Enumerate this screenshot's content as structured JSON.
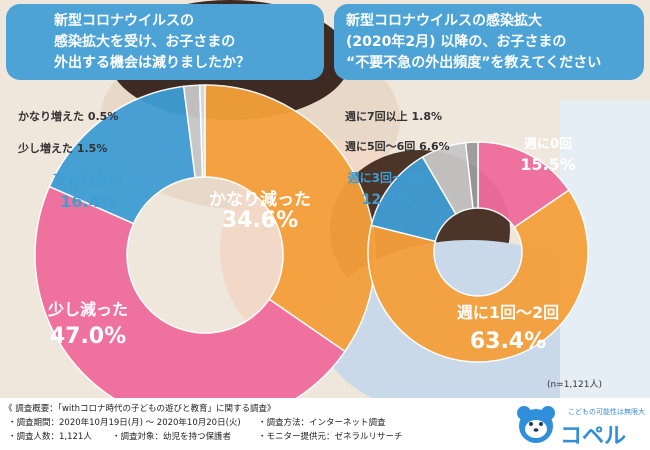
{
  "header": {
    "q1_lines": [
      "新型コロナウイルスの",
      "感染拡大を受け、お子さまの",
      "外出する機会は減りましたか？"
    ],
    "q2_lines": [
      "新型コロナウイルスの感染拡大",
      "(2020年2月) 以降の、お子さまの",
      "“不要不急の外出頻度”を教えてください"
    ]
  },
  "chart_data": [
    {
      "type": "pie",
      "title": "新型コロナウイルスの感染拡大を受け、お子さまの外出する機会は減りましたか？",
      "slices": [
        {
          "label": "かなり減った",
          "value": 34.6,
          "value_text": "34.6%",
          "color": "#f5a03a"
        },
        {
          "label": "少し減った",
          "value": 47.0,
          "value_text": "47.0%",
          "color": "#f06c9b"
        },
        {
          "label": "変わらない",
          "value": 16.4,
          "value_text": "16.4%",
          "color": "#3f9dd4"
        },
        {
          "label": "少し増えた",
          "value": 1.5,
          "value_text": "1.5%",
          "color": "#c7c7c7"
        },
        {
          "label": "かなり増えた",
          "value": 0.5,
          "value_text": "0.5%",
          "color": "#e0e0e0"
        }
      ]
    },
    {
      "type": "pie",
      "title": "新型コロナウイルスの感染拡大(2020年2月)以降の、お子さまの“不要不急の外出頻度”を教えてください",
      "slices": [
        {
          "label": "週に0回",
          "value": 15.5,
          "value_text": "15.5%",
          "color": "#f06c9b"
        },
        {
          "label": "週に1回〜2回",
          "value": 63.4,
          "value_text": "63.4%",
          "color": "#f5a03a"
        },
        {
          "label": "週に3回〜4回",
          "value": 12.7,
          "value_text": "12.7%",
          "color": "#3f9dd4"
        },
        {
          "label": "週に5回〜6回",
          "value": 6.6,
          "value_text": "6.6%",
          "color": "#c7c7c7"
        },
        {
          "label": "週に7回以上",
          "value": 1.8,
          "value_text": "1.8%",
          "color": "#9b9b9b"
        }
      ]
    }
  ],
  "sample_size": "(n=1,121人)",
  "footer": {
    "title": "《 調査概要：「withコロナ時代の子どもの遊びと教育」に関する調査》",
    "period": "・調査期間：2020年10月19日(月) 〜 2020年10月20日(火)",
    "method": "・調査方法：インターネット調査",
    "people": "・調査人数：1,121人",
    "target": "・調査対象：幼児を持つ保護者",
    "provider": "・モニター提供元：ゼネラルリサーチ"
  },
  "logo": {
    "tagline": "こどもの可能性は無限大",
    "name": "コペル"
  }
}
